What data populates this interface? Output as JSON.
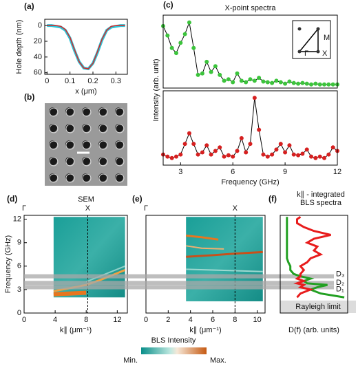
{
  "chart_data": [
    {
      "type": "line",
      "panel": "(a)",
      "xlabel": "x (μm)",
      "ylabel": "Hole depth (nm)",
      "xlim": [
        -0.01,
        0.35
      ],
      "xticks": [
        0,
        0.1,
        0.2,
        0.3
      ],
      "ylim": [
        62,
        -8
      ],
      "yticks": [
        0,
        20,
        40,
        60
      ],
      "x": [
        0,
        0.02,
        0.04,
        0.06,
        0.08,
        0.1,
        0.12,
        0.14,
        0.16,
        0.18,
        0.2,
        0.22,
        0.24,
        0.26,
        0.28,
        0.3,
        0.32,
        0.34
      ],
      "series": [
        {
          "color": "#2ec4d6",
          "width": 4,
          "values": [
            0,
            0,
            1,
            2,
            6,
            16,
            32,
            46,
            54,
            55,
            48,
            34,
            18,
            6,
            2,
            1,
            0,
            0
          ]
        },
        {
          "color": "#d62728",
          "width": 1.5,
          "values": [
            0,
            0,
            0,
            1,
            5,
            15,
            31,
            46,
            54,
            55,
            48,
            33,
            17,
            6,
            1,
            0,
            0,
            0
          ]
        }
      ]
    },
    {
      "type": "line",
      "panel": "(c)",
      "title": "X-point spectra",
      "xlim": [
        2,
        12
      ],
      "ylim": [
        0,
        1
      ],
      "inset_labels": [
        "Γ",
        "X",
        "M"
      ],
      "x": [
        2,
        2.25,
        2.5,
        2.75,
        3,
        3.25,
        3.5,
        3.75,
        4,
        4.25,
        4.5,
        4.75,
        5,
        5.25,
        5.5,
        5.75,
        6,
        6.25,
        6.5,
        6.75,
        7,
        7.25,
        7.5,
        7.75,
        8,
        8.25,
        8.5,
        8.75,
        9,
        9.25,
        9.5,
        9.75,
        10,
        10.25,
        10.5,
        10.75,
        11,
        11.25,
        11.5,
        11.75,
        12
      ],
      "series": [
        {
          "color": "#3cc43c",
          "line_color": "#000000",
          "marker": true,
          "values": [
            0.85,
            0.72,
            0.55,
            0.48,
            0.62,
            0.74,
            0.9,
            0.55,
            0.18,
            0.2,
            0.36,
            0.22,
            0.3,
            0.18,
            0.1,
            0.12,
            0.08,
            0.2,
            0.1,
            0.08,
            0.12,
            0.1,
            0.14,
            0.09,
            0.08,
            0.07,
            0.1,
            0.08,
            0.06,
            0.09,
            0.07,
            0.06,
            0.07,
            0.06,
            0.05,
            0.06,
            0.05,
            0.05,
            0.05,
            0.05,
            0.05
          ]
        }
      ]
    },
    {
      "type": "line",
      "xlabel": "Frequency (GHz)",
      "ylabel": "Intensity (arb. unit)",
      "xlim": [
        2,
        12
      ],
      "xticks": [
        3,
        6,
        9,
        12
      ],
      "ylim": [
        0,
        1.05
      ],
      "x": [
        2,
        2.25,
        2.5,
        2.75,
        3,
        3.25,
        3.5,
        3.75,
        4,
        4.25,
        4.5,
        4.75,
        5,
        5.25,
        5.5,
        5.75,
        6,
        6.25,
        6.5,
        6.75,
        7,
        7.25,
        7.5,
        7.75,
        8,
        8.25,
        8.5,
        8.75,
        9,
        9.25,
        9.5,
        9.75,
        10,
        10.25,
        10.5,
        10.75,
        11,
        11.25,
        11.5,
        11.75,
        12
      ],
      "series": [
        {
          "color": "#d62020",
          "line_color": "#000000",
          "marker": true,
          "values": [
            0.15,
            0.12,
            0.1,
            0.12,
            0.15,
            0.3,
            0.45,
            0.3,
            0.15,
            0.18,
            0.28,
            0.15,
            0.2,
            0.25,
            0.12,
            0.14,
            0.12,
            0.2,
            0.38,
            0.18,
            0.3,
            0.95,
            0.5,
            0.15,
            0.12,
            0.15,
            0.22,
            0.3,
            0.18,
            0.28,
            0.15,
            0.14,
            0.16,
            0.22,
            0.12,
            0.1,
            0.12,
            0.1,
            0.15,
            0.25,
            0.2
          ]
        }
      ]
    },
    {
      "type": "dispersion",
      "panel": "(d)",
      "xlabel": "k∥ (μm⁻¹)",
      "ylabel": "Frequency (GHz)",
      "xlim": [
        0,
        13.3
      ],
      "xticks": [
        0,
        4,
        8,
        12
      ],
      "ylim": [
        0,
        12.5
      ],
      "yticks": [
        0,
        3,
        6,
        9,
        12
      ],
      "map_xlim": [
        3.8,
        13
      ],
      "map_ylim": [
        2,
        12.3
      ],
      "axis_points": [
        {
          "value": 0,
          "label": "Γ"
        },
        {
          "value": 8.2,
          "label": "X"
        }
      ],
      "branches": [
        {
          "color": "#e8761e",
          "width": 6,
          "x": [
            3.8,
            6,
            8
          ],
          "values": [
            2.4,
            2.5,
            2.6
          ]
        },
        {
          "color": "#f0a040",
          "width": 3,
          "x": [
            3.8,
            6,
            8,
            10,
            13
          ],
          "values": [
            2.8,
            3.2,
            3.6,
            4.3,
            5.5
          ]
        },
        {
          "color": "#8fd0c8",
          "width": 2,
          "x": [
            8,
            10,
            13
          ],
          "values": [
            4,
            4.8,
            6
          ]
        }
      ]
    },
    {
      "type": "dispersion",
      "panel": "(e)",
      "xlabel": "k∥ (μm⁻¹)",
      "xlim": [
        0,
        10.7
      ],
      "xticks": [
        0,
        2,
        4,
        6,
        8,
        10
      ],
      "ylim": [
        0,
        12.5
      ],
      "map_xlim": [
        3.6,
        10.5
      ],
      "map_ylim": [
        1.5,
        12.3
      ],
      "axis_points": [
        {
          "value": 0,
          "label": "Γ"
        },
        {
          "value": 8,
          "label": "X"
        }
      ],
      "branches": [
        {
          "color": "#e8761e",
          "width": 3,
          "x": [
            3.6,
            5,
            6.5
          ],
          "values": [
            9.9,
            9.7,
            9.4
          ]
        },
        {
          "color": "#c8501a",
          "width": 3,
          "x": [
            3.6,
            6,
            8,
            10.5
          ],
          "values": [
            7.2,
            7.4,
            7.6,
            7.8
          ]
        },
        {
          "color": "#f0b070",
          "width": 2,
          "x": [
            3.6,
            5,
            7
          ],
          "values": [
            8.6,
            8.3,
            8.2
          ]
        },
        {
          "color": "#9fd8d0",
          "width": 2,
          "x": [
            3.6,
            6,
            10.5
          ],
          "values": [
            5.6,
            5.5,
            5.3
          ]
        }
      ]
    },
    {
      "type": "line",
      "orientation": "horizontal",
      "panel": "(f)",
      "title": [
        "k∥ - integrated",
        "BLS spectra"
      ],
      "xlabel": "D(f) (arb. units)",
      "xlim": [
        0,
        1
      ],
      "ylim": [
        0,
        12.5
      ],
      "rayleigh": {
        "value": 1.6,
        "label": "Rayleigh limit"
      },
      "bands": [
        {
          "value": 3.3,
          "label": "D₁"
        },
        {
          "value": 3.85,
          "label": "D₂"
        },
        {
          "value": 4.7,
          "label": "D₃"
        }
      ],
      "y": [
        2,
        2.5,
        3,
        3.3,
        3.6,
        3.8,
        4.1,
        4.4,
        4.7,
        5,
        5.5,
        6,
        6.5,
        7,
        7.5,
        8,
        8.5,
        9,
        9.5,
        10,
        10.5,
        11,
        11.5,
        12,
        12.3
      ],
      "series": [
        {
          "color": "#22a022",
          "width": 3,
          "values": [
            0.95,
            0.6,
            0.45,
            0.55,
            0.7,
            0.4,
            0.35,
            0.45,
            0.3,
            0.2,
            0.15,
            0.15,
            0.12,
            0.1,
            0.1,
            0.1,
            0.1,
            0.1,
            0.1,
            0.1,
            0.1,
            0.1,
            0.1,
            0.1,
            0.1
          ]
        },
        {
          "color": "#e81c1c",
          "width": 3,
          "values": [
            0.25,
            0.3,
            0.45,
            0.3,
            0.35,
            0.25,
            0.35,
            0.25,
            0.3,
            0.3,
            0.35,
            0.3,
            0.4,
            0.45,
            0.6,
            0.5,
            0.55,
            0.4,
            0.5,
            0.75,
            0.5,
            0.35,
            0.25,
            0.25,
            0.3
          ]
        }
      ]
    }
  ],
  "sem": {
    "panel": "(b)",
    "caption": "SEM"
  },
  "colorbar": {
    "title": "BLS Intensity",
    "min_label": "Min.",
    "max_label": "Max."
  }
}
